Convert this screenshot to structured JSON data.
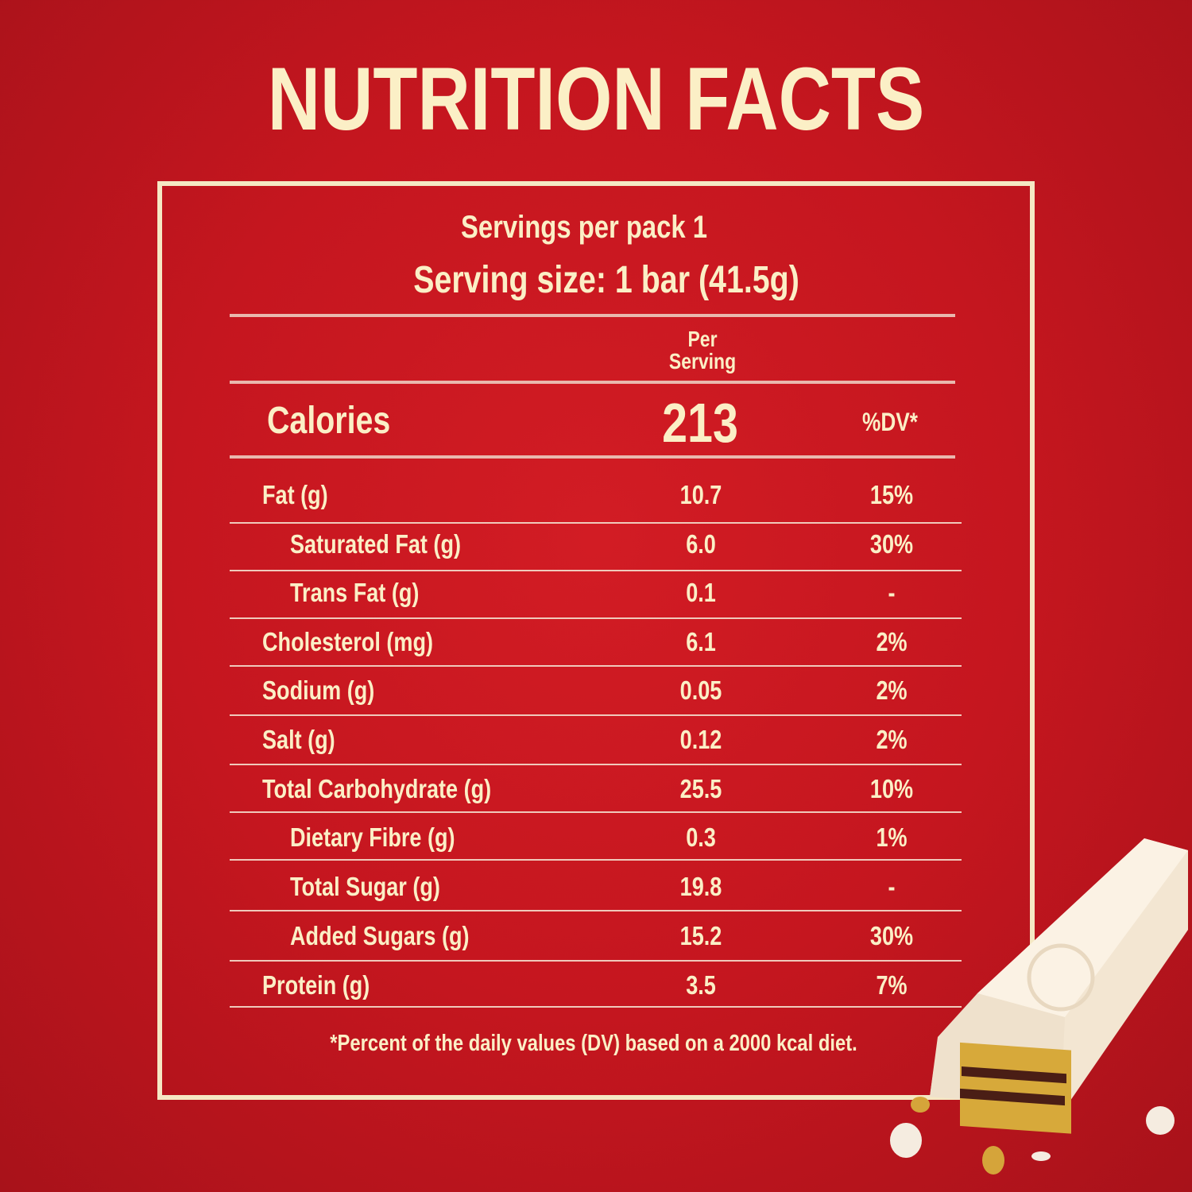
{
  "title": "NUTRITION FACTS",
  "servings_per_pack": "Servings per pack 1",
  "serving_size": "Serving size: 1 bar (41.5g)",
  "per_serving_header": [
    "Per",
    "Serving"
  ],
  "calories": {
    "label": "Calories",
    "value": "213",
    "dv_header": "%DV*"
  },
  "rows": [
    {
      "label": "Fat (g)",
      "value": "10.7",
      "dv": "15%",
      "indent": false
    },
    {
      "label": "Saturated Fat (g)",
      "value": "6.0",
      "dv": "30%",
      "indent": true
    },
    {
      "label": "Trans Fat (g)",
      "value": "0.1",
      "dv": "-",
      "indent": true
    },
    {
      "label": "Cholesterol (mg)",
      "value": "6.1",
      "dv": "2%",
      "indent": false
    },
    {
      "label": "Sodium (g)",
      "value": "0.05",
      "dv": "2%",
      "indent": false
    },
    {
      "label": "Salt (g)",
      "value": "0.12",
      "dv": "2%",
      "indent": false
    },
    {
      "label": "Total Carbohydrate (g)",
      "value": "25.5",
      "dv": "10%",
      "indent": false
    },
    {
      "label": "Dietary Fibre (g)",
      "value": "0.3",
      "dv": "1%",
      "indent": true
    },
    {
      "label": "Total Sugar (g)",
      "value": "19.8",
      "dv": "-",
      "indent": true
    },
    {
      "label": "Added Sugars (g)",
      "value": "15.2",
      "dv": "30%",
      "indent": true
    },
    {
      "label": "Protein (g)",
      "value": "3.5",
      "dv": "7%",
      "indent": false
    }
  ],
  "footnote": "*Percent of the daily values (DV) based on a 2000 kcal diet.",
  "colors": {
    "background": "#c5161f",
    "text": "#fbefc6"
  }
}
